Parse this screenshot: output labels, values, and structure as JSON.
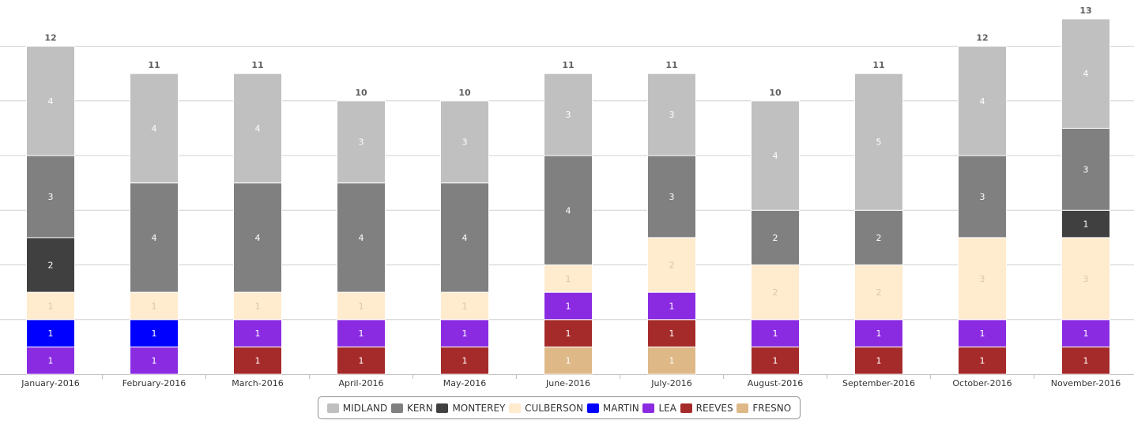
{
  "chart_data": {
    "type": "bar",
    "stacked": true,
    "categories": [
      "January-2016",
      "February-2016",
      "March-2016",
      "April-2016",
      "May-2016",
      "June-2016",
      "July-2016",
      "August-2016",
      "September-2016",
      "October-2016",
      "November-2016"
    ],
    "totals": [
      12,
      11,
      11,
      10,
      10,
      11,
      11,
      10,
      11,
      12,
      13
    ],
    "ylim": [
      0,
      13
    ],
    "grid": true,
    "legend_position": "bottom-center",
    "series": [
      {
        "name": "FRESNO",
        "color": "#DEB887",
        "values": [
          0,
          0,
          0,
          0,
          0,
          1,
          1,
          0,
          0,
          0,
          0
        ]
      },
      {
        "name": "REEVES",
        "color": "#A52A2A",
        "values": [
          0,
          0,
          1,
          1,
          1,
          1,
          1,
          1,
          1,
          1,
          1
        ]
      },
      {
        "name": "LEA",
        "color": "#8A2BE2",
        "values": [
          1,
          1,
          1,
          1,
          1,
          1,
          1,
          1,
          1,
          1,
          1
        ]
      },
      {
        "name": "MARTIN",
        "color": "#0000FF",
        "values": [
          1,
          1,
          0,
          0,
          0,
          0,
          0,
          0,
          0,
          0,
          0
        ]
      },
      {
        "name": "CULBERSON",
        "color": "#FFEBCD",
        "values": [
          1,
          1,
          1,
          1,
          1,
          1,
          2,
          2,
          2,
          3,
          3
        ]
      },
      {
        "name": "MONTEREY",
        "color": "#404040",
        "values": [
          2,
          0,
          0,
          0,
          0,
          0,
          0,
          0,
          0,
          0,
          1
        ]
      },
      {
        "name": "KERN",
        "color": "#808080",
        "values": [
          3,
          4,
          4,
          4,
          4,
          4,
          3,
          2,
          2,
          3,
          3
        ]
      },
      {
        "name": "MIDLAND",
        "color": "#C0C0C0",
        "values": [
          4,
          4,
          4,
          3,
          3,
          3,
          3,
          4,
          5,
          4,
          4
        ]
      }
    ],
    "legend_order": [
      "MIDLAND",
      "KERN",
      "MONTEREY",
      "CULBERSON",
      "MARTIN",
      "LEA",
      "REEVES",
      "FRESNO"
    ],
    "zero_labels": [
      {
        "series": "REEVES",
        "category": "January-2016"
      },
      {
        "series": "REEVES",
        "category": "February-2016"
      },
      {
        "series": "MARTIN",
        "category": "March-2016"
      },
      {
        "series": "MARTIN",
        "category": "April-2016"
      },
      {
        "series": "MARTIN",
        "category": "May-2016"
      },
      {
        "series": "MARTIN",
        "category": "June-2016"
      },
      {
        "series": "MARTIN",
        "category": "July-2016"
      },
      {
        "series": "MARTIN",
        "category": "August-2016"
      },
      {
        "series": "MARTIN",
        "category": "September-2016"
      },
      {
        "series": "MARTIN",
        "category": "October-2016"
      },
      {
        "series": "MARTIN",
        "category": "November-2016"
      },
      {
        "series": "MONTEREY",
        "category": "February-2016"
      },
      {
        "series": "MONTEREY",
        "category": "March-2016"
      },
      {
        "series": "MONTEREY",
        "category": "April-2016"
      },
      {
        "series": "MONTEREY",
        "category": "May-2016"
      },
      {
        "series": "MONTEREY",
        "category": "June-2016"
      },
      {
        "series": "MONTEREY",
        "category": "July-2016"
      },
      {
        "series": "MONTEREY",
        "category": "August-2016"
      },
      {
        "series": "MONTEREY",
        "category": "September-2016"
      },
      {
        "series": "MONTEREY",
        "category": "October-2016"
      },
      {
        "series": "MARTIN",
        "category": "June-2016"
      }
    ]
  }
}
